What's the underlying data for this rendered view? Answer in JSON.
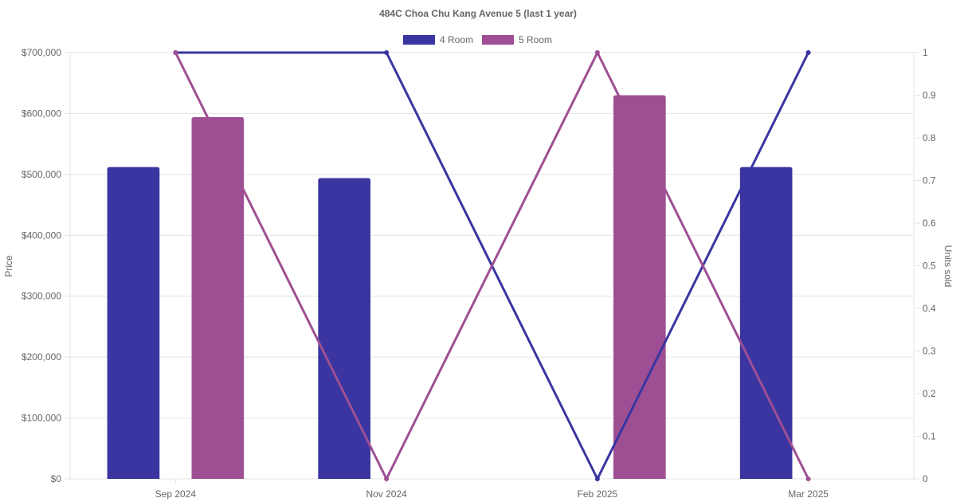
{
  "chart_data": {
    "type": "bar",
    "title": "484C Choa Chu Kang Avenue 5 (last 1 year)",
    "categories": [
      "Sep 2024",
      "Nov 2024",
      "Feb 2025",
      "Mar 2025"
    ],
    "y_left": {
      "label": "Price",
      "ylim": [
        0,
        700000
      ],
      "ticks": [
        "$0",
        "$100,000",
        "$200,000",
        "$300,000",
        "$400,000",
        "$500,000",
        "$600,000",
        "$700,000"
      ]
    },
    "y_right": {
      "label": "Units sold",
      "ylim": [
        0,
        1
      ],
      "ticks": [
        "0",
        "0.1",
        "0.2",
        "0.3",
        "0.4",
        "0.5",
        "0.6",
        "0.7",
        "0.8",
        "0.9",
        "1"
      ]
    },
    "bar_series": [
      {
        "name": "4 Room",
        "color": "#3a35a0",
        "values": [
          512000,
          494000,
          null,
          512000
        ]
      },
      {
        "name": "5 Room",
        "color": "#9e4f94",
        "values": [
          594000,
          null,
          630000,
          null
        ]
      }
    ],
    "line_series": [
      {
        "name": "4 Room",
        "color": "#3a35a0",
        "axis": "right",
        "values": [
          1,
          1,
          0,
          1
        ]
      },
      {
        "name": "5 Room",
        "color": "#9e4f94",
        "axis": "right",
        "values": [
          1,
          0,
          1,
          0
        ]
      }
    ],
    "legend": {
      "position": "top",
      "items": [
        "4 Room",
        "5 Room"
      ]
    },
    "grid": true
  }
}
